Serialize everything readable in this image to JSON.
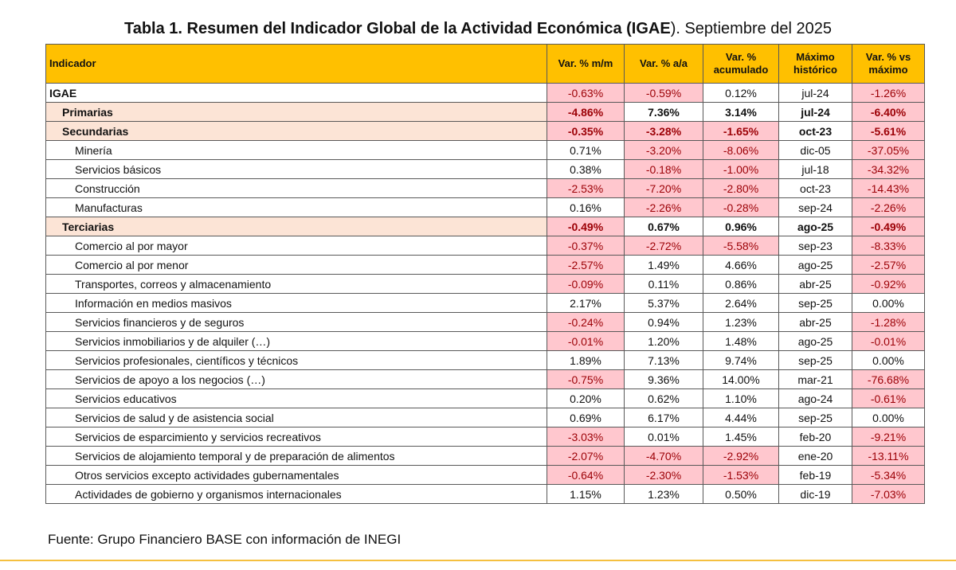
{
  "title": {
    "bold": "Tabla 1. Resumen del Indicador Global de la Actividad Económica (IGAE",
    "rest": "). Septiembre del 2025"
  },
  "table": {
    "headers": [
      "Indicador",
      "Var. % m/m",
      "Var. % a/a",
      "Var. % acumulado",
      "Máximo histórico",
      "Var. % vs máximo"
    ],
    "rows": [
      {
        "level": 0,
        "name": "IGAE",
        "values": [
          "-0.63%",
          "-0.59%",
          "0.12%",
          "jul-24",
          "-1.26%"
        ]
      },
      {
        "level": 1,
        "name": "Primarias",
        "values": [
          "-4.86%",
          "7.36%",
          "3.14%",
          "jul-24",
          "-6.40%"
        ]
      },
      {
        "level": 1,
        "name": "Secundarias",
        "values": [
          "-0.35%",
          "-3.28%",
          "-1.65%",
          "oct-23",
          "-5.61%"
        ]
      },
      {
        "level": 2,
        "name": "Minería",
        "values": [
          "0.71%",
          "-3.20%",
          "-8.06%",
          "dic-05",
          "-37.05%"
        ]
      },
      {
        "level": 2,
        "name": "Servicios básicos",
        "values": [
          "0.38%",
          "-0.18%",
          "-1.00%",
          "jul-18",
          "-34.32%"
        ]
      },
      {
        "level": 2,
        "name": "Construcción",
        "values": [
          "-2.53%",
          "-7.20%",
          "-2.80%",
          "oct-23",
          "-14.43%"
        ]
      },
      {
        "level": 2,
        "name": "Manufacturas",
        "values": [
          "0.16%",
          "-2.26%",
          "-0.28%",
          "sep-24",
          "-2.26%"
        ]
      },
      {
        "level": 1,
        "name": "Terciarias",
        "values": [
          "-0.49%",
          "0.67%",
          "0.96%",
          "ago-25",
          "-0.49%"
        ]
      },
      {
        "level": 2,
        "name": "Comercio al por mayor",
        "values": [
          "-0.37%",
          "-2.72%",
          "-5.58%",
          "sep-23",
          "-8.33%"
        ]
      },
      {
        "level": 2,
        "name": "Comercio al por menor",
        "values": [
          "-2.57%",
          "1.49%",
          "4.66%",
          "ago-25",
          "-2.57%"
        ]
      },
      {
        "level": 2,
        "name": "Transportes, correos y almacenamiento",
        "values": [
          "-0.09%",
          "0.11%",
          "0.86%",
          "abr-25",
          "-0.92%"
        ]
      },
      {
        "level": 2,
        "name": "Información en medios masivos",
        "values": [
          "2.17%",
          "5.37%",
          "2.64%",
          "sep-25",
          "0.00%"
        ]
      },
      {
        "level": 2,
        "name": "Servicios financieros y de seguros",
        "values": [
          "-0.24%",
          "0.94%",
          "1.23%",
          "abr-25",
          "-1.28%"
        ]
      },
      {
        "level": 2,
        "name": "Servicios inmobiliarios y de alquiler (…)",
        "values": [
          "-0.01%",
          "1.20%",
          "1.48%",
          "ago-25",
          "-0.01%"
        ]
      },
      {
        "level": 2,
        "name": "Servicios profesionales, científicos y técnicos",
        "values": [
          "1.89%",
          "7.13%",
          "9.74%",
          "sep-25",
          "0.00%"
        ]
      },
      {
        "level": 2,
        "name": "Servicios de apoyo a los negocios (…)",
        "values": [
          "-0.75%",
          "9.36%",
          "14.00%",
          "mar-21",
          "-76.68%"
        ]
      },
      {
        "level": 2,
        "name": "Servicios educativos",
        "values": [
          "0.20%",
          "0.62%",
          "1.10%",
          "ago-24",
          "-0.61%"
        ]
      },
      {
        "level": 2,
        "name": "Servicios de salud y de asistencia social",
        "values": [
          "0.69%",
          "6.17%",
          "4.44%",
          "sep-25",
          "0.00%"
        ]
      },
      {
        "level": 2,
        "name": "Servicios de esparcimiento y servicios recreativos",
        "values": [
          "-3.03%",
          "0.01%",
          "1.45%",
          "feb-20",
          "-9.21%"
        ]
      },
      {
        "level": 2,
        "name": "Servicios de alojamiento temporal y de preparación de alimentos",
        "values": [
          "-2.07%",
          "-4.70%",
          "-2.92%",
          "ene-20",
          "-13.11%"
        ]
      },
      {
        "level": 2,
        "name": "Otros servicios excepto actividades gubernamentales",
        "values": [
          "-0.64%",
          "-2.30%",
          "-1.53%",
          "feb-19",
          "-5.34%"
        ]
      },
      {
        "level": 2,
        "name": "Actividades de gobierno y organismos internacionales",
        "values": [
          "1.15%",
          "1.23%",
          "0.50%",
          "dic-19",
          "-7.03%"
        ]
      }
    ]
  },
  "footer": "Fuente: Grupo Financiero BASE con información de INEGI",
  "colors": {
    "header_bg": "#ffc000",
    "negative_bg": "#ffc7ce",
    "negative_text": "#9c0006",
    "sector_bg": "#fce4d6",
    "accent_rule": "#f5c040"
  }
}
